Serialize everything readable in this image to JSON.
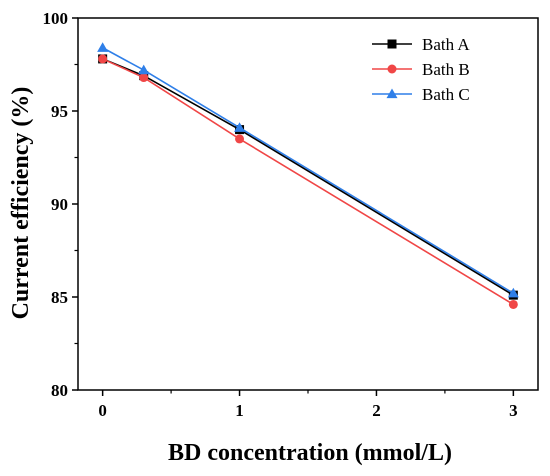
{
  "chart_data": {
    "type": "line",
    "xlabel": "BD concentration (mmol/L)",
    "ylabel": "Current efficiency (%)",
    "xlim": [
      -0.18,
      3.18
    ],
    "ylim": [
      80,
      100
    ],
    "xticks": [
      0,
      1,
      2,
      3
    ],
    "yticks": [
      80,
      85,
      90,
      95,
      100
    ],
    "grid": false,
    "legend_position": "top-right",
    "series": [
      {
        "name": "Bath A",
        "color": "#000000",
        "marker": "square",
        "x": [
          0,
          0.3,
          1,
          3
        ],
        "y": [
          97.8,
          96.9,
          94.0,
          85.1
        ]
      },
      {
        "name": "Bath B",
        "color": "#f04646",
        "marker": "circle",
        "x": [
          0,
          0.3,
          1,
          3
        ],
        "y": [
          97.8,
          96.8,
          93.5,
          84.6
        ]
      },
      {
        "name": "Bath C",
        "color": "#2f7fe8",
        "marker": "triangle",
        "x": [
          0,
          0.3,
          1,
          3
        ],
        "y": [
          98.4,
          97.2,
          94.1,
          85.2
        ]
      }
    ]
  }
}
